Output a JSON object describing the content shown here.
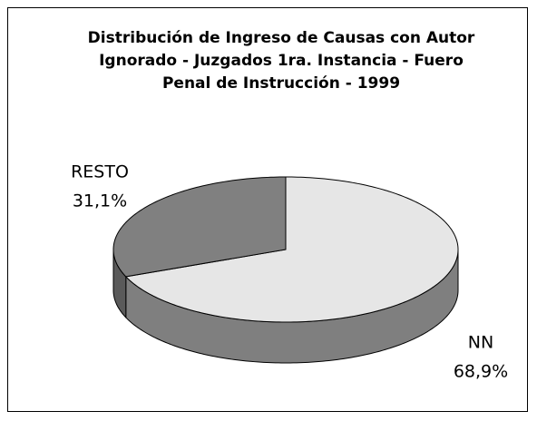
{
  "chart_data": {
    "type": "pie",
    "title": "Distribución de Ingreso de Causas con Autor Ignorado - Juzgados 1ra. Instancia - Fuero Penal de Instrucción - 1999",
    "categories": [
      "NN",
      "RESTO"
    ],
    "values": [
      68.9,
      31.1
    ],
    "value_labels": [
      "68,9%",
      "31,1%"
    ],
    "colors": [
      "#e6e6e6",
      "#808080"
    ]
  }
}
